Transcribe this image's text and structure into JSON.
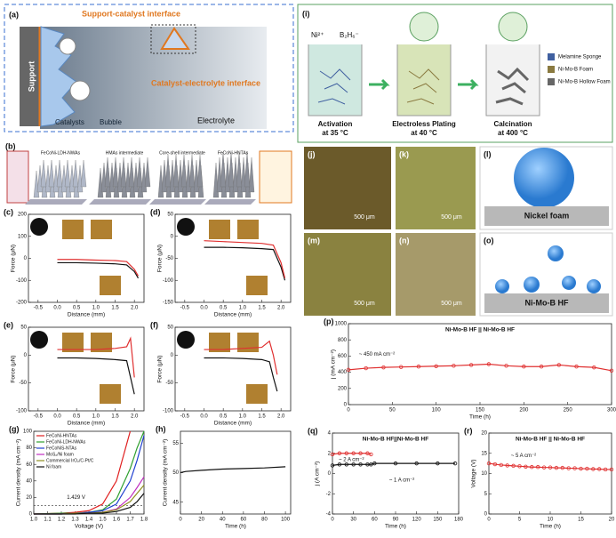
{
  "figure": {
    "panel_a": {
      "label": "(a)",
      "support_catalyst": "Support-catalyst interface",
      "support": "Support",
      "catalyst_electrolyte": "Catalyst-electrolyte interface",
      "electrolyte": "Electrolyte",
      "catalysts": "Catalysts",
      "bubble": "Bubble"
    },
    "panel_b": {
      "label": "(b)",
      "steps": [
        "FeCoNi-LDH-NWAs",
        "HMAs intermediate",
        "Core-shell intermediate",
        "FeCoNi-HNTAs"
      ]
    },
    "panel_i": {
      "label": "(i)",
      "ions": [
        "Ni²⁺",
        "B₂H₆⁻"
      ],
      "steps": [
        "Activation",
        "at 35 °C",
        "Electroless Plating",
        "at 40 °C",
        "Calcination",
        "at 400 °C"
      ],
      "legend": [
        "Melamine Sponge",
        "Ni-Mo-B Foam",
        "Ni-Mo-B Hollow Foam"
      ]
    },
    "photos": {
      "labels": [
        "(j)",
        "(k)",
        "(l)",
        "(m)",
        "(n)",
        "(o)"
      ],
      "scale": [
        "500 μm",
        "500 μm",
        "500 μm",
        "500 μm"
      ],
      "substrates": [
        "Nickel foam",
        "Ni-Mo-B HF"
      ]
    }
  },
  "chart_data": [
    {
      "type": "line",
      "panel": "(c)",
      "xlabel": "Distance (mm)",
      "ylabel": "Force (μN)",
      "xlim": [
        -0.75,
        2.25
      ],
      "ylim": [
        -200,
        200
      ],
      "xticks": [
        -0.5,
        {
          "value": 0,
          "label": "0.0"
        },
        0.5,
        {
          "value": 1,
          "label": "1.0"
        },
        1.5,
        {
          "value": 2,
          "label": "2.0"
        }
      ],
      "yticks": [
        -200,
        -100,
        0,
        100,
        200
      ],
      "x": [
        0,
        0.5,
        1,
        1.5,
        1.8,
        2,
        2.1
      ],
      "series": [
        {
          "color": "#111111",
          "values": [
            -20,
            -20,
            -22,
            -25,
            -30,
            -60,
            -90
          ]
        },
        {
          "color": "#e03030",
          "values": [
            -5,
            -5,
            -8,
            -10,
            -15,
            -50,
            -80
          ]
        }
      ]
    },
    {
      "type": "line",
      "panel": "(d)",
      "xlabel": "Distance (mm)",
      "ylabel": "Force (μN)",
      "xlim": [
        -0.75,
        2.25
      ],
      "ylim": [
        -150,
        50
      ],
      "xticks": [
        -0.5,
        {
          "value": 0,
          "label": "0.0"
        },
        0.5,
        {
          "value": 1,
          "label": "1.0"
        },
        1.5,
        {
          "value": 2,
          "label": "2.0"
        }
      ],
      "yticks": [
        -150,
        -100,
        -50,
        0,
        50
      ],
      "x": [
        0,
        0.5,
        1,
        1.5,
        1.8,
        2,
        2.1
      ],
      "series": [
        {
          "color": "#111111",
          "values": [
            -25,
            -25,
            -26,
            -28,
            -30,
            -70,
            -100
          ]
        },
        {
          "color": "#e03030",
          "values": [
            -10,
            -12,
            -14,
            -16,
            -20,
            -60,
            -95
          ]
        }
      ]
    },
    {
      "type": "line",
      "panel": "(e)",
      "xlabel": "Distance (mm)",
      "ylabel": "Force (μN)",
      "xlim": [
        -0.75,
        2.25
      ],
      "ylim": [
        -100,
        50
      ],
      "xticks": [
        -0.5,
        {
          "value": 0,
          "label": "0.0"
        },
        0.5,
        {
          "value": 1,
          "label": "1.0"
        },
        1.5,
        {
          "value": 2,
          "label": "2.0"
        }
      ],
      "yticks": [
        -100,
        -50,
        0,
        50
      ],
      "x": [
        0,
        0.5,
        1,
        1.5,
        1.8,
        1.9,
        2
      ],
      "series": [
        {
          "color": "#111111",
          "values": [
            -5,
            -5,
            -6,
            -8,
            -10,
            -40,
            -70
          ]
        },
        {
          "color": "#e03030",
          "values": [
            10,
            10,
            10,
            12,
            15,
            30,
            -40
          ]
        }
      ]
    },
    {
      "type": "line",
      "panel": "(f)",
      "xlabel": "Distance (mm)",
      "ylabel": "Force (μN)",
      "xlim": [
        -0.75,
        2.25
      ],
      "ylim": [
        -100,
        50
      ],
      "xticks": [
        -0.5,
        {
          "value": 0,
          "label": "0.0"
        },
        0.5,
        {
          "value": 1,
          "label": "1.0"
        },
        1.5,
        {
          "value": 2,
          "label": "2.0"
        }
      ],
      "yticks": [
        -100,
        -50,
        0,
        50
      ],
      "x": [
        0,
        0.5,
        1,
        1.5,
        1.7,
        1.8,
        1.9
      ],
      "series": [
        {
          "color": "#111111",
          "values": [
            -5,
            -5,
            -6,
            -8,
            -12,
            -40,
            -65
          ]
        },
        {
          "color": "#e03030",
          "values": [
            10,
            10,
            12,
            14,
            25,
            0,
            -35
          ]
        }
      ]
    },
    {
      "type": "line",
      "panel": "(g)",
      "xlabel": "Voltage (V)",
      "ylabel": "Current density (mA cm⁻²)",
      "xlim": [
        1,
        1.8
      ],
      "ylim": [
        0,
        100
      ],
      "xticks": [
        {
          "value": 1,
          "label": "1.0"
        },
        1.1,
        1.2,
        1.3,
        1.4,
        1.5,
        1.6,
        1.7,
        1.8
      ],
      "yticks": [
        0,
        20,
        40,
        60,
        80,
        100
      ],
      "hline": 10,
      "annotations": [
        "1.429 V"
      ],
      "legend": "upper left",
      "x": [
        1,
        1.2,
        1.3,
        1.4,
        1.5,
        1.6,
        1.7,
        1.75,
        1.8
      ],
      "series": [
        {
          "name": "FeCoNi-HNTAs",
          "color": "#e02020",
          "values": [
            0,
            1,
            2,
            4,
            12,
            40,
            100,
            null,
            null
          ]
        },
        {
          "name": "FeCoNi-LDH-NWAs",
          "color": "#30a030",
          "values": [
            0,
            1,
            1,
            2,
            5,
            18,
            55,
            80,
            100
          ]
        },
        {
          "name": "FeCoNiS-NTAs",
          "color": "#2040d0",
          "values": [
            0,
            0,
            1,
            2,
            4,
            12,
            40,
            65,
            95
          ]
        },
        {
          "name": "MoS₂/Ni foam",
          "color": "#c030c0",
          "values": [
            0,
            0,
            1,
            1,
            2,
            6,
            20,
            32,
            45
          ]
        },
        {
          "name": "Commercial IrO₂/C-Pt/C",
          "color": "#909020",
          "values": [
            0,
            0,
            1,
            1,
            2,
            5,
            15,
            25,
            35
          ]
        },
        {
          "name": "Ni foam",
          "color": "#111111",
          "values": [
            0,
            0,
            0,
            1,
            1,
            3,
            8,
            15,
            25
          ]
        }
      ]
    },
    {
      "type": "line",
      "panel": "(h)",
      "xlabel": "Time (h)",
      "ylabel": "Current density (mA cm⁻²)",
      "xlim": [
        0,
        105
      ],
      "ylim": [
        43,
        57
      ],
      "xticks": [
        0,
        20,
        40,
        60,
        80,
        100
      ],
      "yticks": [
        45,
        50,
        55
      ],
      "x": [
        0,
        5,
        20,
        40,
        60,
        80,
        100
      ],
      "series": [
        {
          "color": "#111111",
          "values": [
            50,
            50.2,
            50.4,
            50.6,
            50.7,
            50.8,
            51
          ]
        }
      ]
    },
    {
      "type": "line",
      "panel": "(p)",
      "title": "Ni-Mo-B HF || Ni-Mo-B HF",
      "xlabel": "Time (h)",
      "ylabel": "j (mA cm⁻²)",
      "annotations": [
        "~ 450 mA cm⁻²"
      ],
      "markers": true,
      "xlim": [
        0,
        300
      ],
      "ylim": [
        0,
        1000
      ],
      "xticks": [
        0,
        50,
        100,
        150,
        200,
        250,
        300
      ],
      "yticks": [
        0,
        200,
        400,
        600,
        800,
        1000
      ],
      "x": [
        0,
        20,
        40,
        60,
        80,
        100,
        120,
        140,
        160,
        180,
        200,
        220,
        240,
        260,
        280,
        300
      ],
      "series": [
        {
          "color": "#e03030",
          "values": [
            430,
            450,
            460,
            465,
            470,
            475,
            480,
            490,
            500,
            480,
            470,
            470,
            490,
            470,
            460,
            420
          ]
        }
      ]
    },
    {
      "type": "line",
      "panel": "(q)",
      "title": "Ni-Mo-B HF||Ni-Mo-B HF",
      "xlabel": "Time (h)",
      "ylabel": "j (A cm⁻²)",
      "annotations": [
        "~ 2 A cm⁻²",
        "~ 1 A cm⁻²"
      ],
      "markers": true,
      "xlim": [
        0,
        180
      ],
      "ylim": [
        -4,
        4
      ],
      "xticks": [
        0,
        30,
        60,
        90,
        120,
        150,
        180
      ],
      "yticks": [
        -4,
        -2,
        0,
        2,
        4
      ],
      "x": [
        0,
        10,
        20,
        30,
        40,
        50,
        55,
        60,
        90,
        120,
        150,
        175
      ],
      "series": [
        {
          "color": "#e03030",
          "values": [
            1.9,
            2,
            2,
            2,
            2,
            2,
            1.9,
            null,
            null,
            null,
            null,
            null
          ]
        },
        {
          "color": "#111111",
          "values": [
            0.8,
            0.9,
            0.9,
            0.9,
            0.9,
            0.9,
            0.9,
            1,
            1,
            1,
            1,
            1
          ]
        }
      ]
    },
    {
      "type": "line",
      "panel": "(r)",
      "title": "Ni-Mo-B HF || Ni-Mo-B HF",
      "xlabel": "Time (h)",
      "ylabel": "Voltage (V)",
      "annotations": [
        "~ 5 A cm⁻²"
      ],
      "markers": true,
      "xlim": [
        0,
        20
      ],
      "ylim": [
        0,
        20
      ],
      "xticks": [
        0,
        5,
        10,
        15,
        20
      ],
      "yticks": [
        0,
        5,
        10,
        15,
        20
      ],
      "x": [
        0,
        1,
        2,
        3,
        4,
        5,
        6,
        7,
        8,
        9,
        10,
        11,
        12,
        13,
        14,
        15,
        16,
        17,
        18,
        19,
        20
      ],
      "series": [
        {
          "color": "#e03030",
          "values": [
            12.5,
            12.3,
            12.1,
            12,
            11.9,
            11.8,
            11.7,
            11.6,
            11.6,
            11.5,
            11.5,
            11.4,
            11.4,
            11.3,
            11.3,
            11.2,
            11.2,
            11.1,
            11.1,
            11,
            11
          ]
        }
      ]
    }
  ]
}
